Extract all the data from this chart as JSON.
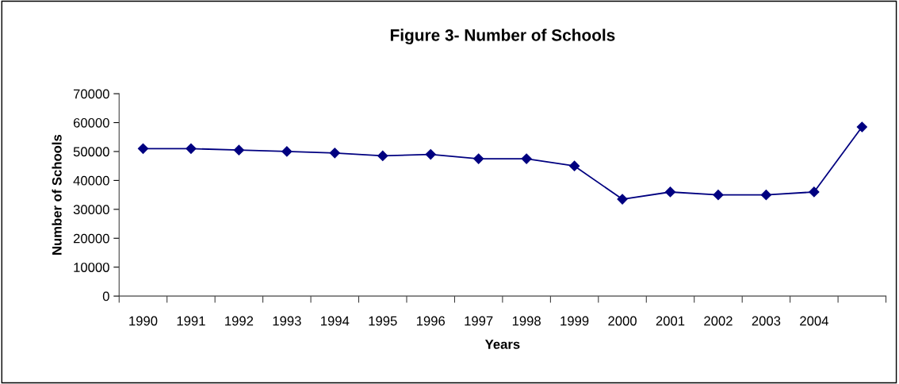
{
  "chart_data": {
    "type": "line",
    "title": "Figure 3- Number of Schools",
    "xlabel": "Years",
    "ylabel": "Number of Schools",
    "categories": [
      "1990",
      "1991",
      "1992",
      "1993",
      "1994",
      "1995",
      "1996",
      "1997",
      "1998",
      "1999",
      "2000",
      "2001",
      "2002",
      "2003",
      "2004",
      null
    ],
    "series": [
      {
        "color": "#000080",
        "values": [
          51000,
          51000,
          50500,
          50000,
          49500,
          48500,
          49000,
          47500,
          47500,
          45000,
          33500,
          36000,
          35000,
          35000,
          36000,
          58500
        ]
      }
    ],
    "ylim": [
      0,
      70000
    ],
    "yticks": [
      0,
      10000,
      20000,
      30000,
      40000,
      50000,
      60000,
      70000
    ],
    "grid": false,
    "marker": "diamond",
    "line_style": "solid"
  }
}
